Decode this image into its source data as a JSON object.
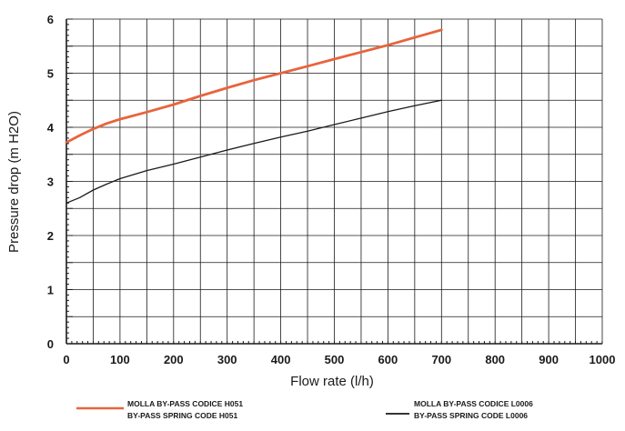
{
  "chart_data": {
    "type": "line",
    "title": "",
    "xlabel": "Flow rate (l/h)",
    "ylabel": "Pressure drop (m H2O)",
    "xlim": [
      0,
      1000
    ],
    "ylim": [
      0,
      6
    ],
    "x_ticks": [
      "0",
      "100",
      "200",
      "300",
      "400",
      "500",
      "600",
      "700",
      "800",
      "900",
      "1000"
    ],
    "y_ticks": [
      "0",
      "1",
      "2",
      "3",
      "4",
      "5",
      "6"
    ],
    "grid": true,
    "legend_position": "bottom",
    "series": [
      {
        "name": "MOLLA BY-PASS  CODICE H051 / BY-PASS SPRING  CODE H051",
        "legend_lines": [
          "MOLLA BY-PASS  CODICE H051",
          "BY-PASS SPRING  CODE H051"
        ],
        "color": "#e8643c",
        "x": [
          0,
          25,
          50,
          75,
          100,
          150,
          200,
          250,
          300,
          350,
          400,
          450,
          500,
          550,
          600,
          650,
          700
        ],
        "y": [
          3.72,
          3.85,
          3.97,
          4.07,
          4.15,
          4.28,
          4.42,
          4.58,
          4.73,
          4.87,
          5.0,
          5.13,
          5.26,
          5.39,
          5.52,
          5.66,
          5.8
        ]
      },
      {
        "name": "MOLLA BY-PASS  CODICE L0006 / BY-PASS SPRING  CODE L0006",
        "legend_lines": [
          "MOLLA BY-PASS  CODICE L0006",
          "BY-PASS SPRING  CODE L0006"
        ],
        "color": "#1a1a1a",
        "x": [
          0,
          25,
          50,
          75,
          100,
          150,
          200,
          250,
          300,
          350,
          400,
          450,
          500,
          550,
          600,
          650,
          700
        ],
        "y": [
          2.6,
          2.7,
          2.84,
          2.95,
          3.05,
          3.2,
          3.32,
          3.45,
          3.58,
          3.7,
          3.82,
          3.93,
          4.05,
          4.17,
          4.29,
          4.4,
          4.5
        ]
      }
    ]
  }
}
